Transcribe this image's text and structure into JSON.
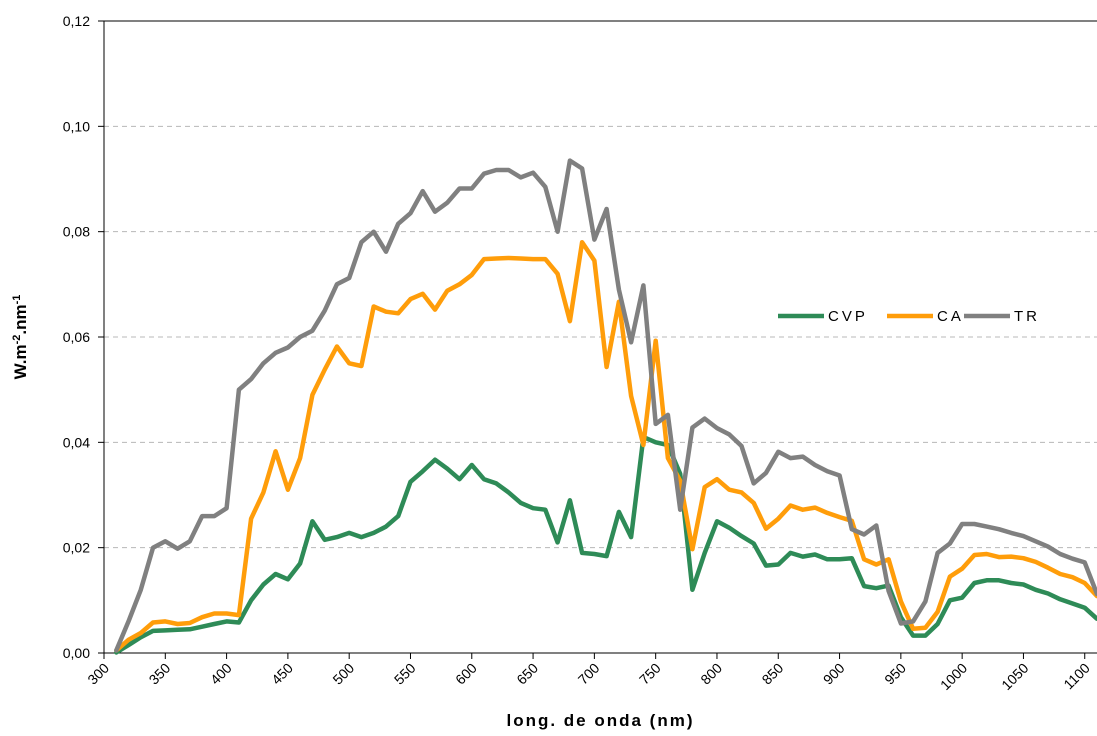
{
  "chart_data": {
    "type": "line",
    "xlabel": "long. de onda (nm)",
    "ylabel_main": "W.m",
    "ylabel_sup1": "-2",
    "ylabel_mid": ".nm",
    "ylabel_sup2": "-1",
    "xlim": [
      300,
      1110
    ],
    "ylim": [
      0,
      0.12
    ],
    "x_ticks": [
      300,
      350,
      400,
      450,
      500,
      550,
      600,
      650,
      700,
      750,
      800,
      850,
      900,
      950,
      1000,
      1050,
      1100
    ],
    "y_ticks": [
      0.0,
      0.02,
      0.04,
      0.06,
      0.08,
      0.1,
      0.12
    ],
    "y_tick_labels": [
      "0,00",
      "0,02",
      "0,04",
      "0,06",
      "0,08",
      "0,10",
      "0,12"
    ],
    "grid": "horizontal-dashed",
    "legend_position": "right",
    "x": [
      310,
      320,
      330,
      340,
      350,
      360,
      370,
      380,
      390,
      400,
      410,
      420,
      430,
      440,
      450,
      460,
      470,
      480,
      490,
      500,
      510,
      520,
      530,
      540,
      550,
      560,
      570,
      580,
      590,
      600,
      610,
      620,
      630,
      640,
      650,
      660,
      670,
      680,
      690,
      700,
      710,
      720,
      730,
      740,
      750,
      760,
      770,
      780,
      790,
      800,
      810,
      820,
      830,
      840,
      850,
      860,
      870,
      880,
      890,
      900,
      910,
      920,
      930,
      940,
      950,
      960,
      970,
      980,
      990,
      1000,
      1010,
      1020,
      1030,
      1040,
      1050,
      1060,
      1070,
      1080,
      1090,
      1100,
      1110
    ],
    "series": [
      {
        "name": "CVP",
        "color": "#2e8b57",
        "values": [
          0.0001,
          0.0015,
          0.003,
          0.0042,
          0.0043,
          0.0044,
          0.0045,
          0.005,
          0.0055,
          0.006,
          0.0058,
          0.01,
          0.013,
          0.015,
          0.014,
          0.017,
          0.025,
          0.0215,
          0.022,
          0.0228,
          0.022,
          0.0228,
          0.024,
          0.026,
          0.0325,
          0.0345,
          0.0367,
          0.035,
          0.033,
          0.0357,
          0.033,
          0.0322,
          0.0305,
          0.0285,
          0.0275,
          0.0272,
          0.021,
          0.029,
          0.019,
          0.0188,
          0.0184,
          0.0268,
          0.022,
          0.041,
          0.04,
          0.0395,
          0.034,
          0.012,
          0.019,
          0.025,
          0.0238,
          0.0222,
          0.0208,
          0.0166,
          0.0168,
          0.019,
          0.0183,
          0.0187,
          0.0178,
          0.0178,
          0.018,
          0.0127,
          0.0123,
          0.0128,
          0.0068,
          0.0033,
          0.0033,
          0.0055,
          0.01,
          0.0105,
          0.0133,
          0.0138,
          0.0138,
          0.0133,
          0.013,
          0.012,
          0.0113,
          0.0102,
          0.0094,
          0.0086,
          0.0065
        ]
      },
      {
        "name": "CA",
        "color": "#ff9d0a",
        "values": [
          0.0005,
          0.0025,
          0.0038,
          0.0058,
          0.006,
          0.0055,
          0.0057,
          0.0068,
          0.0075,
          0.0075,
          0.0072,
          0.0255,
          0.0305,
          0.0383,
          0.031,
          0.037,
          0.049,
          0.0538,
          0.0582,
          0.055,
          0.0545,
          0.0658,
          0.0648,
          0.0645,
          0.0672,
          0.0682,
          0.0652,
          0.0688,
          0.07,
          0.0718,
          0.0748,
          0.0749,
          0.075,
          0.0749,
          0.0748,
          0.0748,
          0.072,
          0.063,
          0.078,
          0.0745,
          0.0543,
          0.0667,
          0.0488,
          0.0395,
          0.0593,
          0.037,
          0.0327,
          0.0197,
          0.0315,
          0.033,
          0.031,
          0.0305,
          0.0285,
          0.0236,
          0.0255,
          0.028,
          0.0272,
          0.0276,
          0.0266,
          0.0258,
          0.0251,
          0.0178,
          0.0168,
          0.0178,
          0.0098,
          0.0046,
          0.0048,
          0.0078,
          0.0145,
          0.016,
          0.0186,
          0.0188,
          0.0182,
          0.0183,
          0.018,
          0.0173,
          0.0162,
          0.015,
          0.0144,
          0.0133,
          0.0108
        ]
      },
      {
        "name": "TR",
        "color": "#808080",
        "values": [
          0.0005,
          0.006,
          0.012,
          0.02,
          0.0212,
          0.0198,
          0.0212,
          0.026,
          0.026,
          0.0275,
          0.05,
          0.052,
          0.055,
          0.057,
          0.058,
          0.06,
          0.0612,
          0.065,
          0.07,
          0.0712,
          0.078,
          0.08,
          0.0762,
          0.0815,
          0.0835,
          0.0877,
          0.0838,
          0.0855,
          0.0882,
          0.0882,
          0.091,
          0.0917,
          0.0917,
          0.0903,
          0.0912,
          0.0885,
          0.08,
          0.0935,
          0.092,
          0.0785,
          0.0843,
          0.069,
          0.059,
          0.0698,
          0.0435,
          0.0452,
          0.0272,
          0.0428,
          0.0445,
          0.0427,
          0.0415,
          0.0393,
          0.0322,
          0.0342,
          0.0382,
          0.037,
          0.0373,
          0.0357,
          0.0345,
          0.0337,
          0.0235,
          0.0225,
          0.0242,
          0.0118,
          0.0056,
          0.006,
          0.0098,
          0.019,
          0.0208,
          0.0245,
          0.0245,
          0.024,
          0.0235,
          0.0228,
          0.0222,
          0.0212,
          0.0202,
          0.0188,
          0.0179,
          0.0172,
          0.0112
        ]
      }
    ],
    "legend_order": [
      "CVP",
      "CA",
      "TR"
    ]
  }
}
